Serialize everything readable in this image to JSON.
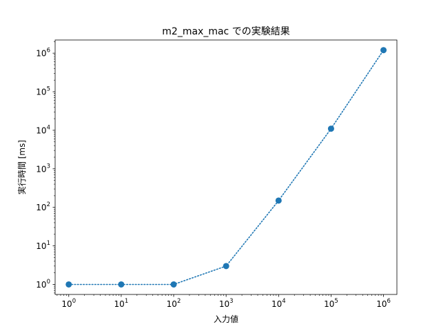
{
  "chart_data": {
    "type": "line",
    "title": "m2_max_mac での実験結果",
    "xlabel": "入力値",
    "ylabel": "実行時間 [ms]",
    "xscale": "log",
    "yscale": "log",
    "xlim": [
      0.55,
      1800000
    ],
    "ylim": [
      0.55,
      2200000
    ],
    "grid": false,
    "line_style": "dotted",
    "marker": "circle",
    "color": "#1f77b4",
    "x_ticks": [
      {
        "base": "10",
        "exp": "0",
        "value": 1
      },
      {
        "base": "10",
        "exp": "1",
        "value": 10
      },
      {
        "base": "10",
        "exp": "2",
        "value": 100
      },
      {
        "base": "10",
        "exp": "3",
        "value": 1000
      },
      {
        "base": "10",
        "exp": "4",
        "value": 10000
      },
      {
        "base": "10",
        "exp": "5",
        "value": 100000
      },
      {
        "base": "10",
        "exp": "6",
        "value": 1000000
      }
    ],
    "y_ticks": [
      {
        "base": "10",
        "exp": "0",
        "value": 1
      },
      {
        "base": "10",
        "exp": "1",
        "value": 10
      },
      {
        "base": "10",
        "exp": "2",
        "value": 100
      },
      {
        "base": "10",
        "exp": "3",
        "value": 1000
      },
      {
        "base": "10",
        "exp": "4",
        "value": 10000
      },
      {
        "base": "10",
        "exp": "5",
        "value": 100000
      },
      {
        "base": "10",
        "exp": "6",
        "value": 1000000
      }
    ],
    "series": [
      {
        "name": "m2_max_mac",
        "x": [
          1,
          10,
          100,
          1000,
          10000,
          100000,
          1000000
        ],
        "y": [
          1,
          1,
          1,
          3,
          150,
          11000,
          1200000
        ]
      }
    ]
  }
}
